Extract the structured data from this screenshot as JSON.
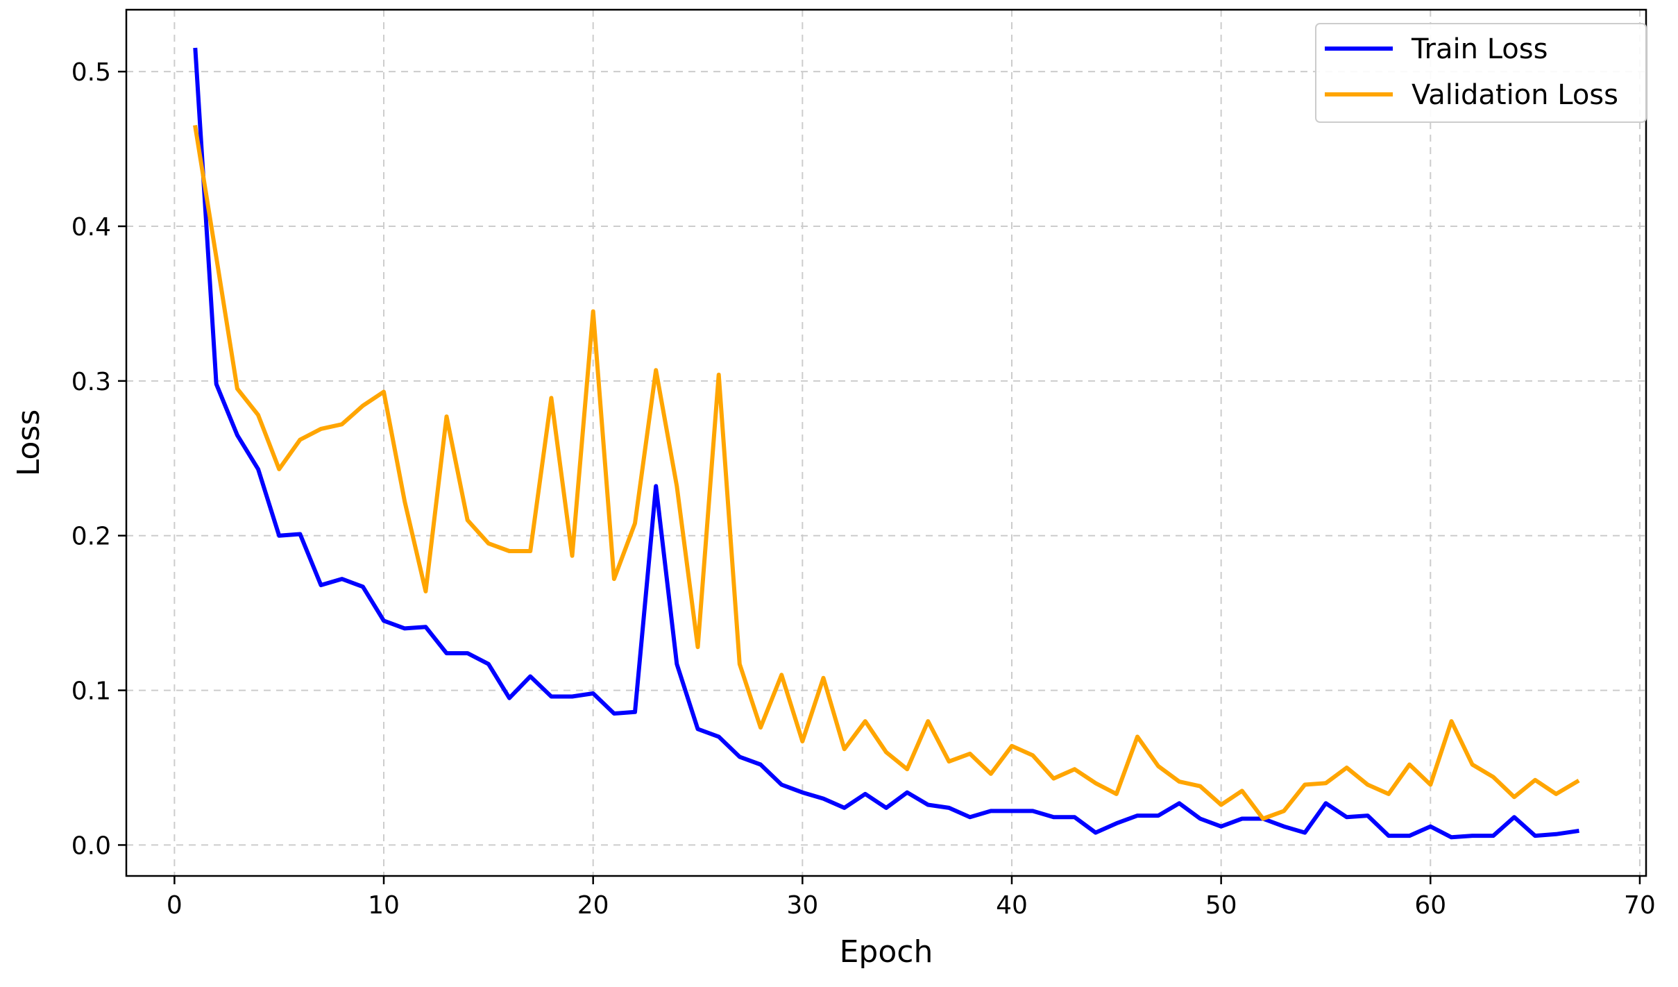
{
  "chart_data": {
    "type": "line",
    "title": "",
    "xlabel": "Epoch",
    "ylabel": "Loss",
    "xlim": [
      -2.3,
      70.3
    ],
    "ylim": [
      -0.02,
      0.54
    ],
    "xticks": [
      0,
      10,
      20,
      30,
      40,
      50,
      60,
      70
    ],
    "yticks": [
      0.0,
      0.1,
      0.2,
      0.3,
      0.4,
      0.5
    ],
    "xtick_labels": [
      "0",
      "10",
      "20",
      "30",
      "40",
      "50",
      "60",
      "70"
    ],
    "ytick_labels": [
      "0.0",
      "0.1",
      "0.2",
      "0.3",
      "0.4",
      "0.5"
    ],
    "grid": true,
    "legend_position": "top-right",
    "x": [
      1,
      2,
      3,
      4,
      5,
      6,
      7,
      8,
      9,
      10,
      11,
      12,
      13,
      14,
      15,
      16,
      17,
      18,
      19,
      20,
      21,
      22,
      23,
      24,
      25,
      26,
      27,
      28,
      29,
      30,
      31,
      32,
      33,
      34,
      35,
      36,
      37,
      38,
      39,
      40,
      41,
      42,
      43,
      44,
      45,
      46,
      47,
      48,
      49,
      50,
      51,
      52,
      53,
      54,
      55,
      56,
      57,
      58,
      59,
      60,
      61,
      62,
      63,
      64,
      65,
      66,
      67
    ],
    "series": [
      {
        "name": "Train Loss",
        "color": "#0000ff",
        "values": [
          0.514,
          0.298,
          0.265,
          0.243,
          0.2,
          0.201,
          0.168,
          0.172,
          0.167,
          0.145,
          0.14,
          0.141,
          0.124,
          0.124,
          0.117,
          0.095,
          0.109,
          0.096,
          0.096,
          0.098,
          0.085,
          0.086,
          0.232,
          0.117,
          0.075,
          0.07,
          0.057,
          0.052,
          0.039,
          0.034,
          0.03,
          0.024,
          0.033,
          0.024,
          0.034,
          0.026,
          0.024,
          0.018,
          0.022,
          0.022,
          0.022,
          0.018,
          0.018,
          0.008,
          0.014,
          0.019,
          0.019,
          0.027,
          0.017,
          0.012,
          0.017,
          0.017,
          0.012,
          0.008,
          0.027,
          0.018,
          0.019,
          0.006,
          0.006,
          0.012,
          0.005,
          0.006,
          0.006,
          0.018,
          0.006,
          0.007,
          0.009
        ]
      },
      {
        "name": "Validation Loss",
        "color": "#ffa500",
        "values": [
          0.464,
          0.38,
          0.295,
          0.278,
          0.243,
          0.262,
          0.269,
          0.272,
          0.284,
          0.293,
          0.222,
          0.164,
          0.277,
          0.21,
          0.195,
          0.19,
          0.19,
          0.289,
          0.187,
          0.345,
          0.172,
          0.208,
          0.307,
          0.232,
          0.128,
          0.304,
          0.117,
          0.076,
          0.11,
          0.067,
          0.108,
          0.062,
          0.08,
          0.06,
          0.049,
          0.08,
          0.054,
          0.059,
          0.046,
          0.064,
          0.058,
          0.043,
          0.049,
          0.04,
          0.033,
          0.07,
          0.051,
          0.041,
          0.038,
          0.026,
          0.035,
          0.017,
          0.022,
          0.039,
          0.04,
          0.05,
          0.039,
          0.033,
          0.052,
          0.039,
          0.08,
          0.052,
          0.044,
          0.031,
          0.042,
          0.033,
          0.041
        ]
      }
    ]
  }
}
